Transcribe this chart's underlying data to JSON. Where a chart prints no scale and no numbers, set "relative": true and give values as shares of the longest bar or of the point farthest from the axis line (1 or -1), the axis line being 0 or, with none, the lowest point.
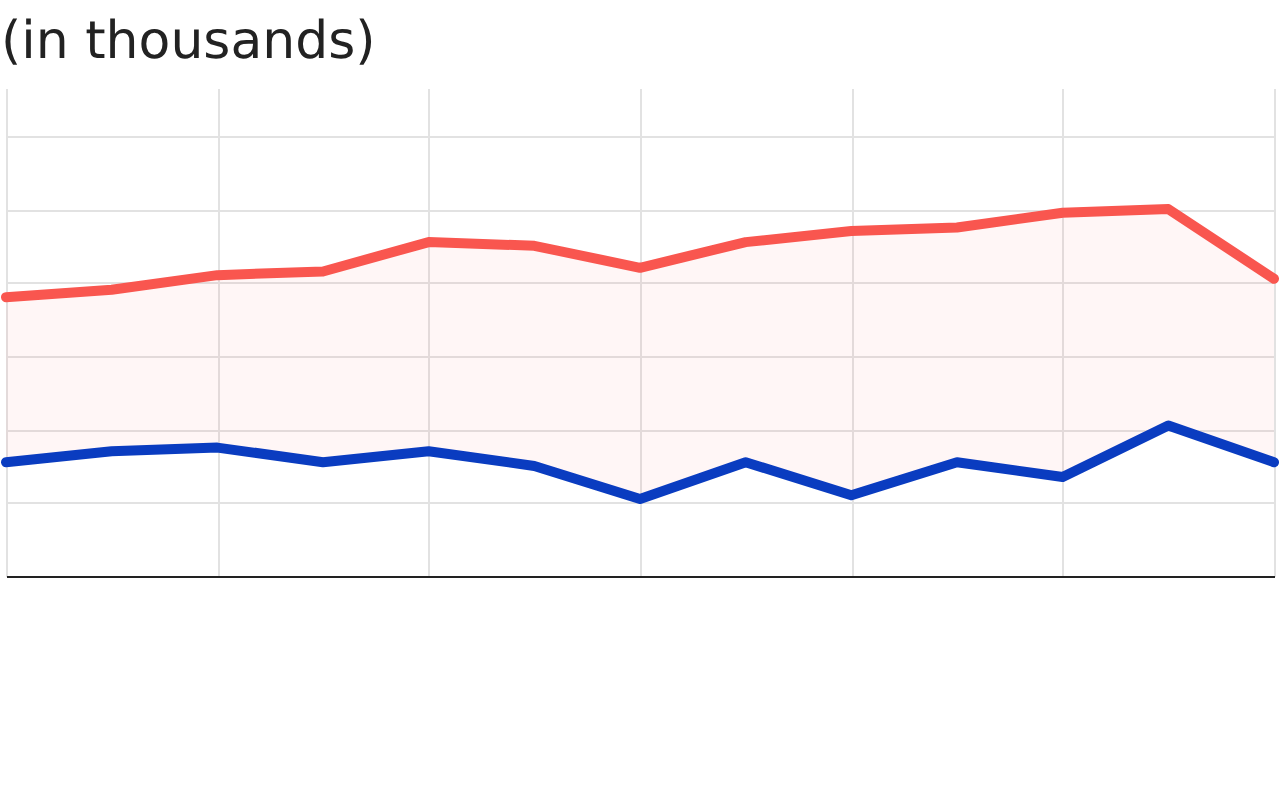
{
  "chart_data": {
    "type": "line",
    "title": "(in thousands)",
    "relative": true,
    "grid": true,
    "categories": [
      null,
      null,
      null,
      null,
      null,
      null,
      null,
      null,
      null,
      null,
      null,
      null,
      null
    ],
    "series": [
      {
        "color": "#f9564f",
        "values": [
          0.76,
          0.78,
          0.82,
          0.83,
          0.91,
          0.9,
          0.84,
          0.91,
          0.94,
          0.95,
          0.99,
          1,
          0.81
        ],
        "lower": [
          0.31,
          0.34,
          0.35,
          0.31,
          0.34,
          0.3,
          0.21,
          0.31,
          0.22,
          0.31,
          0.27,
          0.41,
          0.31
        ],
        "upper": [
          0.76,
          0.78,
          0.82,
          0.83,
          0.91,
          0.9,
          0.84,
          0.91,
          0.94,
          0.95,
          0.99,
          1,
          0.81
        ]
      },
      {
        "color": "#0a3cc0",
        "values": [
          0.31,
          0.34,
          0.35,
          0.31,
          0.34,
          0.3,
          0.21,
          0.31,
          0.22,
          0.31,
          0.27,
          0.41,
          0.31
        ]
      }
    ]
  }
}
